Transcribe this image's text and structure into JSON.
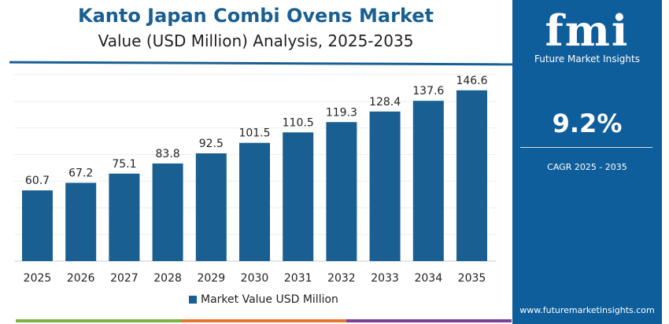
{
  "chart_data": {
    "type": "bar",
    "title": "Kanto Japan Combi Ovens Market",
    "subtitle": "Value (USD Million) Analysis, 2025-2035",
    "categories": [
      "2025",
      "2026",
      "2027",
      "2028",
      "2029",
      "2030",
      "2031",
      "2032",
      "2033",
      "2034",
      "2035"
    ],
    "series": [
      {
        "name": "Market Value USD Million",
        "values": [
          60.7,
          67.2,
          75.1,
          83.8,
          92.5,
          101.5,
          110.5,
          119.3,
          128.4,
          137.6,
          146.6
        ]
      }
    ],
    "ylim": [
      0,
      160
    ],
    "grid": true,
    "legend": "bottom",
    "color": "#1a5f91"
  },
  "panel": {
    "logo": "fmi",
    "brand": "Future Market Insights",
    "cagr": "9.2%",
    "cagr_label": "CAGR 2025 - 2035",
    "url": "www.futuremarketinsights.com"
  },
  "footer_colors": [
    "#7cb342",
    "#e8772e",
    "#7b3f98"
  ]
}
